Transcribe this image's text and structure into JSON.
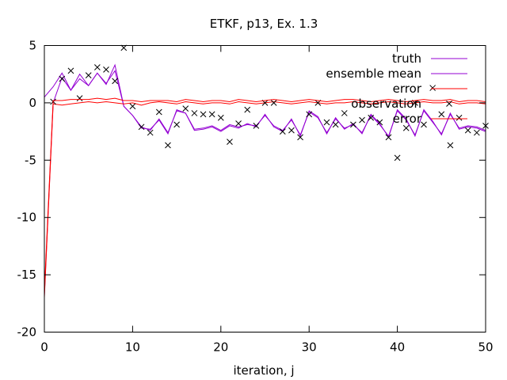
{
  "chart_data": {
    "type": "line",
    "title": "ETKF, p13, Ex. 1.3",
    "xlabel": "iteration, j",
    "ylabel": "",
    "xlim": [
      0,
      50
    ],
    "ylim": [
      -20,
      5
    ],
    "xticks": [
      0,
      10,
      20,
      30,
      40,
      50
    ],
    "yticks": [
      5,
      0,
      -5,
      -10,
      -15,
      -20
    ],
    "xtick_labels": [
      "0",
      "10",
      "20",
      "30",
      "40",
      "50"
    ],
    "ytick_labels": [
      "5",
      "0",
      "-5",
      "-10",
      "-15",
      "-20"
    ],
    "grid": false,
    "legend_position": "top-right",
    "x": [
      0,
      1,
      2,
      3,
      4,
      5,
      6,
      7,
      8,
      9,
      10,
      11,
      12,
      13,
      14,
      15,
      16,
      17,
      18,
      19,
      20,
      21,
      22,
      23,
      24,
      25,
      26,
      27,
      28,
      29,
      30,
      31,
      32,
      33,
      34,
      35,
      36,
      37,
      38,
      39,
      40,
      41,
      42,
      43,
      44,
      45,
      46,
      47,
      48,
      49,
      50
    ],
    "series": [
      {
        "name": "truth",
        "style": "line",
        "color": "#9400d3",
        "values": [
          0.5,
          1.4,
          2.6,
          1.1,
          2.5,
          1.5,
          2.6,
          1.6,
          3.3,
          -0.3,
          -1.1,
          -2.2,
          -2.3,
          -1.5,
          -2.7,
          -0.6,
          -0.9,
          -2.4,
          -2.3,
          -2.1,
          -2.5,
          -2.0,
          -2.2,
          -1.8,
          -2.1,
          -1.0,
          -2.1,
          -2.5,
          -1.4,
          -2.9,
          -0.7,
          -1.2,
          -2.7,
          -1.3,
          -2.3,
          -1.8,
          -2.7,
          -1.0,
          -1.8,
          -3.0,
          -0.6,
          -1.4,
          -2.9,
          -0.6,
          -1.6,
          -2.8,
          -0.9,
          -2.3,
          -2.1,
          -2.2,
          -2.5
        ]
      },
      {
        "name": "ensemble mean",
        "style": "line",
        "color": "#9400d3",
        "values": [
          -16.8,
          0.0,
          2.2,
          1.1,
          2.1,
          1.5,
          2.6,
          1.7,
          2.8,
          -0.3,
          -1.1,
          -2.1,
          -2.4,
          -1.4,
          -2.6,
          -0.7,
          -0.9,
          -2.3,
          -2.2,
          -2.0,
          -2.4,
          -1.9,
          -2.1,
          -1.9,
          -2.0,
          -1.1,
          -2.0,
          -2.4,
          -1.5,
          -2.8,
          -0.8,
          -1.3,
          -2.6,
          -1.4,
          -2.2,
          -1.9,
          -2.6,
          -1.1,
          -1.9,
          -2.9,
          -0.7,
          -1.5,
          -2.8,
          -0.7,
          -1.7,
          -2.7,
          -1.0,
          -2.2,
          -2.0,
          -2.1,
          -2.4
        ]
      },
      {
        "name": "error",
        "style": "line",
        "color": "#ff0000",
        "values": [
          -17.0,
          -0.1,
          -0.2,
          -0.1,
          0.0,
          0.1,
          0.0,
          0.1,
          0.0,
          -0.1,
          0.0,
          -0.2,
          0.0,
          0.1,
          0.0,
          -0.1,
          0.1,
          0.0,
          -0.1,
          0.0,
          0.0,
          -0.1,
          0.1,
          0.0,
          -0.1,
          0.0,
          0.1,
          0.0,
          -0.1,
          0.0,
          0.1,
          0.0,
          -0.1,
          0.0,
          0.0,
          0.1,
          0.0,
          -0.1,
          0.0,
          0.1,
          0.0,
          -0.1,
          0.0,
          0.1,
          0.0,
          0.0,
          0.1,
          -0.1,
          0.0,
          0.0,
          -0.1
        ]
      },
      {
        "name": "observation",
        "style": "points",
        "color": "#000000",
        "values": [
          null,
          0.1,
          2.1,
          2.8,
          0.4,
          2.4,
          3.1,
          2.9,
          1.9,
          4.8,
          -0.3,
          -2.1,
          -2.6,
          -0.8,
          -3.7,
          -1.9,
          -0.5,
          -0.9,
          -1.0,
          -1.0,
          -1.3,
          -3.4,
          -1.8,
          -0.6,
          -2.0,
          0.0,
          0.0,
          -2.5,
          -2.4,
          -3.0,
          -1.0,
          0.0,
          -1.7,
          -1.9,
          -0.9,
          -1.9,
          -1.5,
          -1.3,
          -1.7,
          -3.0,
          -4.8,
          -2.2,
          0.0,
          -1.9,
          1.3,
          -1.0,
          -3.7,
          -1.3,
          -2.4,
          -2.6,
          -2.0
        ]
      },
      {
        "name": "error",
        "style": "line",
        "color": "#ff0000",
        "values": [
          -16.4,
          0.2,
          0.2,
          0.3,
          0.3,
          0.3,
          0.4,
          0.3,
          0.4,
          0.2,
          0.2,
          0.1,
          0.2,
          0.2,
          0.2,
          0.1,
          0.3,
          0.2,
          0.1,
          0.2,
          0.2,
          0.1,
          0.3,
          0.2,
          0.1,
          0.2,
          0.3,
          0.2,
          0.1,
          0.2,
          0.3,
          0.2,
          0.1,
          0.2,
          0.3,
          0.3,
          0.2,
          0.1,
          0.2,
          0.3,
          0.2,
          0.1,
          0.2,
          0.3,
          0.2,
          0.2,
          0.3,
          0.1,
          0.2,
          0.2,
          0.1
        ]
      }
    ]
  }
}
